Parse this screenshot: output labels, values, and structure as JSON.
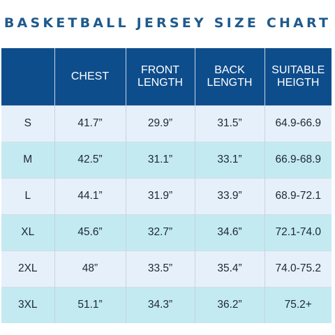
{
  "title": "BASKETBALL JERSEY SIZE CHART",
  "colors": {
    "header_bg": "#0e4d8c",
    "title_text": "#1f5a8c",
    "row_light": "#e6f0fb",
    "row_teal": "#c3eaf1"
  },
  "headers": [
    "",
    "CHEST",
    "FRONT LENGTH",
    "BACK LENGTH",
    "SUITABLE HEIGTH"
  ],
  "rows": [
    {
      "size": "S",
      "chest": "41.7”",
      "front": "29.9”",
      "back": "31.5”",
      "height": "64.9-66.9"
    },
    {
      "size": "M",
      "chest": "42.5”",
      "front": "31.1”",
      "back": "33.1”",
      "height": "66.9-68.9"
    },
    {
      "size": "L",
      "chest": "44.1”",
      "front": "31.9”",
      "back": "33.9”",
      "height": "68.9-72.1"
    },
    {
      "size": "XL",
      "chest": "45.6”",
      "front": "32.7”",
      "back": "34.6”",
      "height": "72.1-74.0"
    },
    {
      "size": "2XL",
      "chest": "48”",
      "front": "33.5”",
      "back": "35.4”",
      "height": "74.0-75.2"
    },
    {
      "size": "3XL",
      "chest": "51.1”",
      "front": "34.3”",
      "back": "36.2”",
      "height": "75.2+"
    }
  ]
}
